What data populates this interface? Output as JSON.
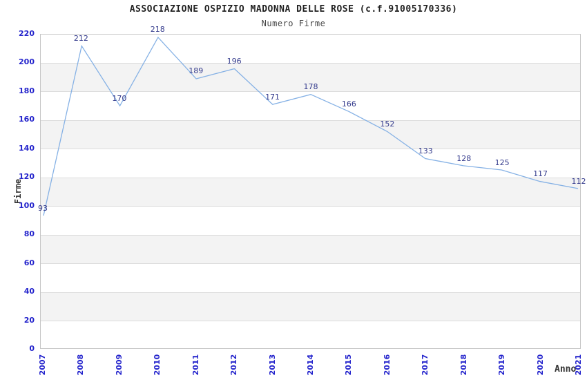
{
  "chart_data": {
    "type": "line",
    "title": "ASSOCIAZIONE OSPIZIO MADONNA DELLE ROSE (c.f.91005170336)",
    "subtitle": "Numero Firme",
    "xlabel": "Anno",
    "ylabel": "Firme",
    "categories": [
      "2007",
      "2008",
      "2009",
      "2010",
      "2011",
      "2012",
      "2013",
      "2014",
      "2015",
      "2016",
      "2017",
      "2018",
      "2019",
      "2020",
      "2021"
    ],
    "values": [
      93,
      212,
      170,
      218,
      189,
      196,
      171,
      178,
      166,
      152,
      133,
      128,
      125,
      117,
      112
    ],
    "ylim": [
      0,
      220
    ],
    "ytick_step": 20,
    "yticks": [
      220,
      200,
      180,
      160,
      140,
      120,
      100,
      80,
      60,
      40,
      20,
      0
    ],
    "grid": "horizontal-bands",
    "legend_position": "none",
    "colors": {
      "line": "#85b1e5",
      "data_label": "#333a8c",
      "tick_label": "#2424cc",
      "band_gray": "#f3f3f3",
      "gridline": "#dcdcdc",
      "plot_border": "#c6c6c6",
      "title": "#222222",
      "subtitle": "#444444",
      "axis_name": "#333333",
      "background": "#ffffff"
    }
  }
}
